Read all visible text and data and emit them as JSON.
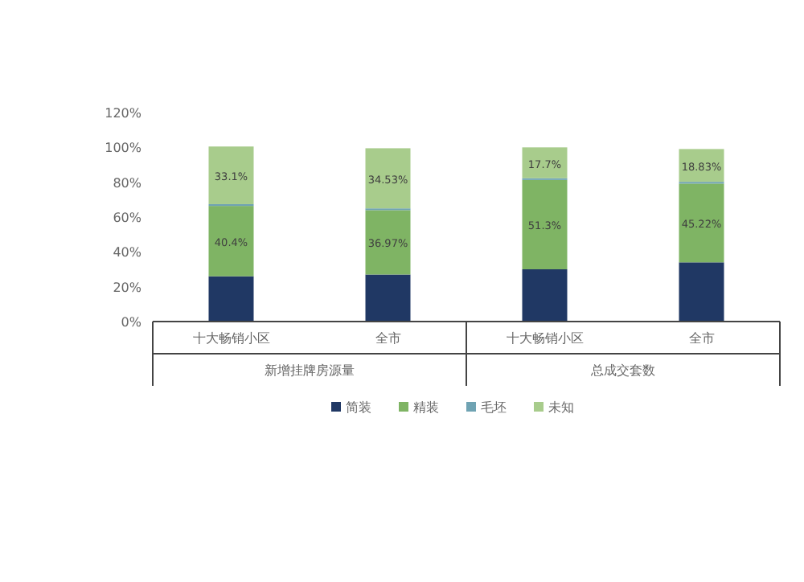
{
  "chart_data": {
    "type": "bar",
    "stacked": true,
    "categories": [
      "十大畅销小区",
      "全市",
      "十大畅销小区",
      "全市"
    ],
    "series": [
      {
        "name": "简装",
        "color": "#203864",
        "values": [
          26,
          27,
          30,
          34
        ],
        "value_labels": [
          null,
          null,
          null,
          null
        ]
      },
      {
        "name": "精装",
        "color": "#7fb464",
        "values": [
          40.4,
          36.97,
          51.3,
          45.22
        ],
        "value_labels": [
          "40.4%",
          "36.97%",
          "51.3%",
          "45.22%"
        ]
      },
      {
        "name": "毛坯",
        "color": "#6fa3b3",
        "values": [
          1,
          1,
          1,
          1
        ],
        "value_labels": [
          null,
          null,
          null,
          null
        ]
      },
      {
        "name": "未知",
        "color": "#a8cc8c",
        "values": [
          33.1,
          34.53,
          17.7,
          18.83
        ],
        "value_labels": [
          "33.1%",
          "34.53%",
          "17.7%",
          "18.83%"
        ]
      }
    ],
    "ylim": [
      0,
      120
    ],
    "yticks": [
      {
        "value": 0,
        "label": "0%"
      },
      {
        "value": 20,
        "label": "20%"
      },
      {
        "value": 40,
        "label": "40%"
      },
      {
        "value": 60,
        "label": "60%"
      },
      {
        "value": 80,
        "label": "80%"
      },
      {
        "value": 100,
        "label": "100%"
      },
      {
        "value": 120,
        "label": "120%"
      }
    ],
    "annotations": [
      "新增挂牌房源量",
      "总成交套数"
    ],
    "grid": false,
    "legend": "bottom"
  }
}
